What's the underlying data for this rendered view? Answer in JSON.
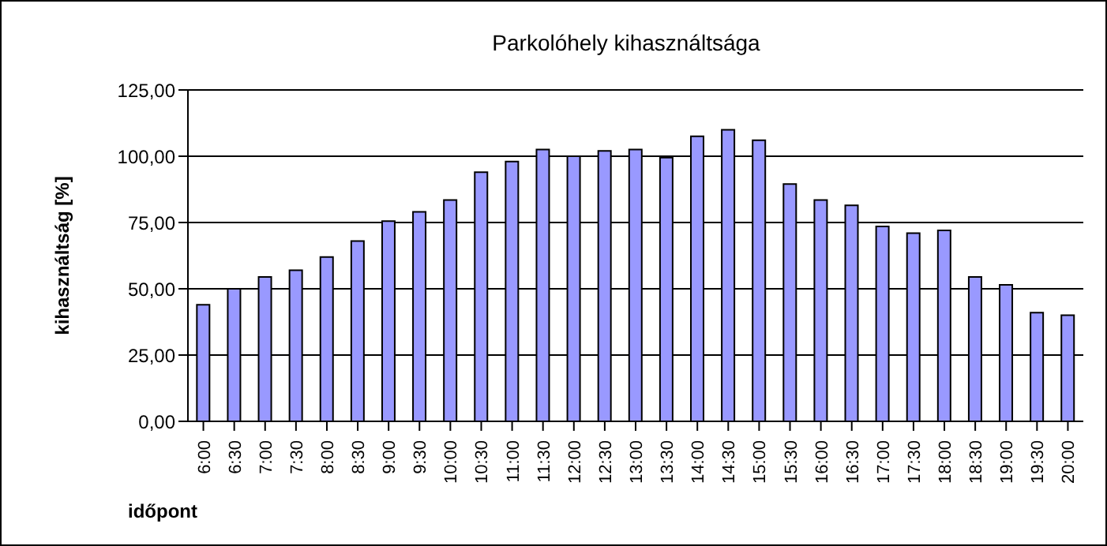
{
  "chart_data": {
    "type": "bar",
    "title": "Parkolóhely kihasználtsága",
    "xlabel": "időpont",
    "ylabel": "kihasználtság [%]",
    "categories": [
      "6:00",
      "6:30",
      "7:00",
      "7:30",
      "8:00",
      "8:30",
      "9:00",
      "9:30",
      "10:00",
      "10:30",
      "11:00",
      "11:30",
      "12:00",
      "12:30",
      "13:00",
      "13:30",
      "14:00",
      "14:30",
      "15:00",
      "15:30",
      "16:00",
      "16:30",
      "17:00",
      "17:30",
      "18:00",
      "18:30",
      "19:00",
      "19:30",
      "20:00"
    ],
    "values": [
      44,
      50,
      54.5,
      57,
      62,
      68,
      75.5,
      79,
      83.5,
      94,
      98,
      102.5,
      100,
      102,
      102.5,
      99.5,
      107.5,
      110,
      106,
      89.5,
      83.5,
      81.5,
      73.5,
      71,
      72,
      54.5,
      51.5,
      41,
      40
    ],
    "color": "#9999ff",
    "ylim": [
      0,
      125
    ],
    "yticks": [
      {
        "value": 0,
        "label": "0,00"
      },
      {
        "value": 25,
        "label": "25,00"
      },
      {
        "value": 50,
        "label": "50,00"
      },
      {
        "value": 75,
        "label": "75,00"
      },
      {
        "value": 100,
        "label": "100,00"
      },
      {
        "value": 125,
        "label": "125,00"
      }
    ],
    "grid": "y",
    "legend": false
  }
}
